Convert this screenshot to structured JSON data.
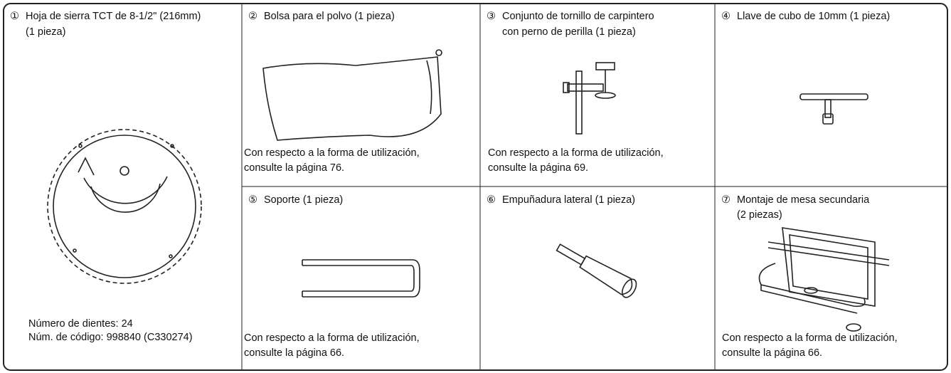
{
  "items": [
    {
      "number": "①",
      "title": [
        "Hoja de sierra TCT de 8-1/2\" (216mm)",
        "(1 pieza)"
      ],
      "notes": [
        "Número de dientes: 24",
        "Núm. de código: 998840 (C330274)"
      ]
    },
    {
      "number": "②",
      "title": [
        "Bolsa para el polvo (1 pieza)"
      ],
      "notes": [
        "Con respecto a la forma de utilización,",
        "consulte la página 76."
      ]
    },
    {
      "number": "③",
      "title": [
        "Conjunto de tornillo de carpintero",
        "con perno de perilla (1 pieza)"
      ],
      "notes": [
        "Con respecto a la forma de utilización,",
        "consulte la página 69."
      ]
    },
    {
      "number": "④",
      "title": [
        "Llave de cubo de 10mm (1 pieza)"
      ]
    },
    {
      "number": "⑤",
      "title": [
        "Soporte (1 pieza)"
      ],
      "notes": [
        "Con respecto a la forma de utilización,",
        "consulte la página 66."
      ]
    },
    {
      "number": "⑥",
      "title": [
        "Empuñadura lateral (1 pieza)"
      ]
    },
    {
      "number": "⑦",
      "title": [
        "Montaje de mesa secundaria",
        "(2 piezas)"
      ],
      "notes": [
        "Con respecto a la forma de utilización,",
        "consulte la página 66."
      ]
    }
  ]
}
